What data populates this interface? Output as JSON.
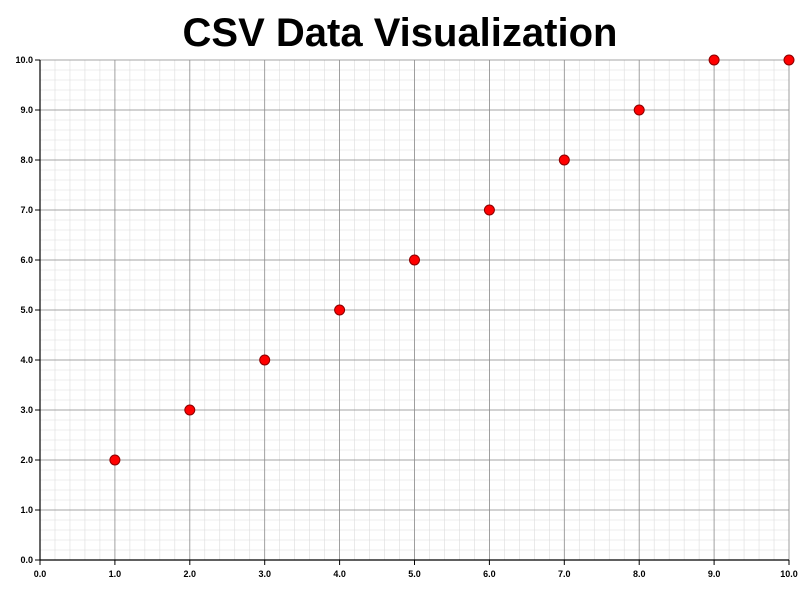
{
  "chart_data": {
    "type": "scatter",
    "title": "CSV Data Visualization",
    "xlabel": "",
    "ylabel": "",
    "xlim": [
      0,
      10
    ],
    "ylim": [
      0,
      10
    ],
    "x_ticks": [
      "0.0",
      "1.0",
      "2.0",
      "3.0",
      "4.0",
      "5.0",
      "6.0",
      "7.0",
      "8.0",
      "9.0",
      "10.0"
    ],
    "y_ticks": [
      "0.0",
      "1.0",
      "2.0",
      "3.0",
      "4.0",
      "5.0",
      "6.0",
      "7.0",
      "8.0",
      "9.0",
      "10.0"
    ],
    "grid": true,
    "minor_grid": true,
    "marker_color": "#ff0000",
    "marker_edge_color": "#8b0000",
    "series": [
      {
        "x": [
          1,
          2,
          3,
          4,
          5,
          6,
          7,
          8,
          9,
          10
        ],
        "y": [
          2,
          3,
          4,
          5,
          6,
          7,
          8,
          9,
          10,
          10
        ]
      }
    ]
  }
}
